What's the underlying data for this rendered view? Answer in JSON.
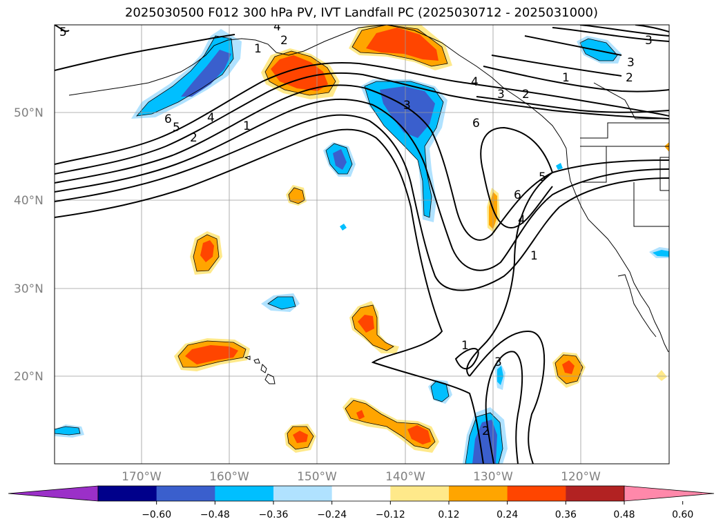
{
  "title": "2025030500 F012 300 hPa PV, IVT Landfall PC (2025030712 - 2025031000)",
  "lat_labels": [
    "50°N",
    "40°N",
    "30°N",
    "20°N"
  ],
  "lon_labels": [
    "170°W",
    "160°W",
    "150°W",
    "140°W",
    "130°W",
    "120°W"
  ],
  "colorbar": {
    "ticks": [
      "−0.60",
      "−0.48",
      "−0.36",
      "−0.24",
      "−0.12",
      "0.12",
      "0.24",
      "0.36",
      "0.48",
      "0.60"
    ],
    "colors": [
      "#9b30c8",
      "#00008b",
      "#3a5fcd",
      "#00bfff",
      "#b0e2ff",
      "#ffffff",
      "#ffe98a",
      "#ffa500",
      "#ff4500",
      "#b22222",
      "#ff88aa"
    ]
  },
  "contour_labels": [
    "5",
    "6",
    "5",
    "4",
    "2",
    "1",
    "1",
    "2",
    "3",
    "4",
    "3",
    "6",
    "5",
    "6",
    "4",
    "1",
    "1",
    "3",
    "2",
    "3",
    "2",
    "1",
    "2",
    "3",
    "4"
  ],
  "shading_colors": {
    "light_blue": "#b0e2ff",
    "cyan": "#00bfff",
    "blue": "#3a5fcd",
    "yellow": "#ffe98a",
    "orange": "#ffa500",
    "red_orange": "#ff4500"
  }
}
